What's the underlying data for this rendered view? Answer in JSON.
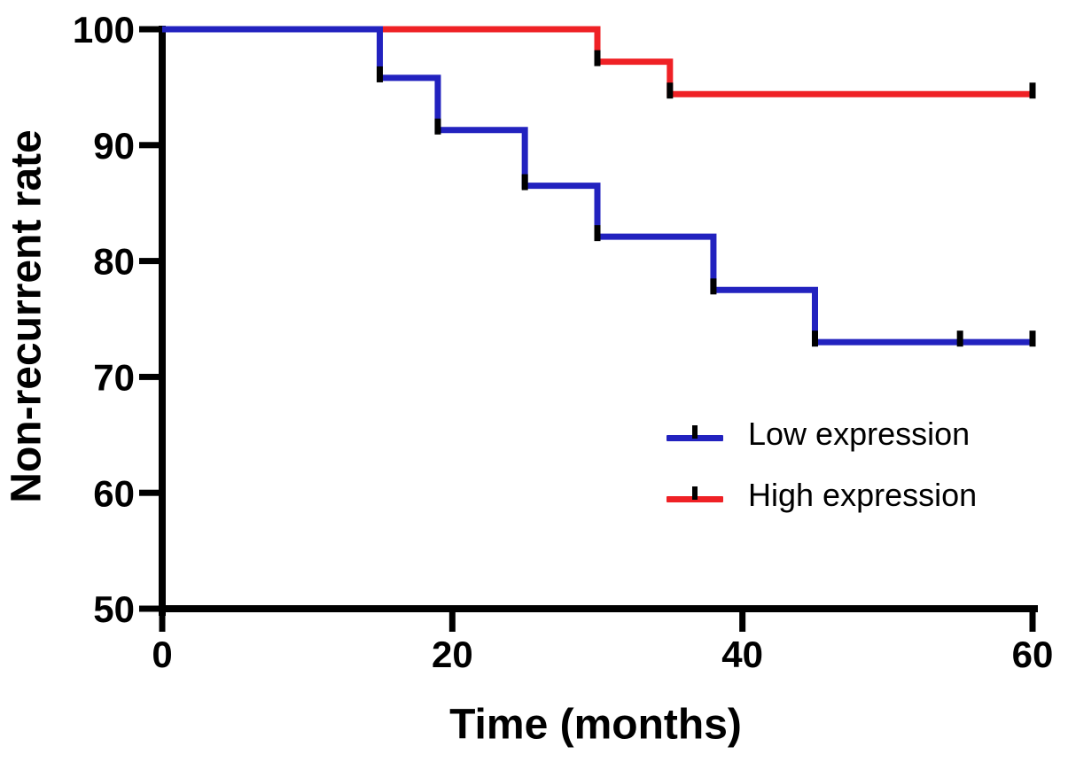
{
  "figure": {
    "background": "#ffffff",
    "axis_color": "#000000",
    "text_color": "#000000"
  },
  "chart_data": {
    "type": "line",
    "subtype": "kaplan-meier-step-survival",
    "title": "",
    "xlabel": "Time (months)",
    "ylabel": "Non-recurrent rate",
    "xlim": [
      0,
      60
    ],
    "ylim": [
      50,
      100
    ],
    "xticks": [
      0,
      20,
      40,
      60
    ],
    "yticks": [
      100,
      90,
      80,
      70,
      60,
      50
    ],
    "grid": false,
    "legend_position": "inside-right-middle",
    "series": [
      {
        "name": "Low expression",
        "color": "#2222bf",
        "step_points": [
          [
            0,
            100
          ],
          [
            15,
            100
          ],
          [
            15,
            95.8
          ],
          [
            19,
            95.8
          ],
          [
            19,
            91.3
          ],
          [
            25,
            91.3
          ],
          [
            25,
            86.5
          ],
          [
            30,
            86.5
          ],
          [
            30,
            82.1
          ],
          [
            38,
            82.1
          ],
          [
            38,
            77.5
          ],
          [
            45,
            77.5
          ],
          [
            45,
            73.0
          ],
          [
            60,
            73.0
          ]
        ],
        "censor_ticks": [
          [
            15,
            95.8
          ],
          [
            19,
            91.3
          ],
          [
            25,
            86.5
          ],
          [
            30,
            82.1
          ],
          [
            38,
            77.5
          ],
          [
            45,
            73.0
          ],
          [
            55,
            73.0
          ],
          [
            60,
            73.0
          ]
        ]
      },
      {
        "name": "High expression",
        "color": "#ef2125",
        "step_points": [
          [
            0,
            100
          ],
          [
            30,
            100
          ],
          [
            30,
            97.2
          ],
          [
            35,
            97.2
          ],
          [
            35,
            94.4
          ],
          [
            60,
            94.4
          ]
        ],
        "censor_ticks": [
          [
            30,
            97.2
          ],
          [
            35,
            94.4
          ],
          [
            60,
            94.4
          ]
        ]
      }
    ]
  }
}
